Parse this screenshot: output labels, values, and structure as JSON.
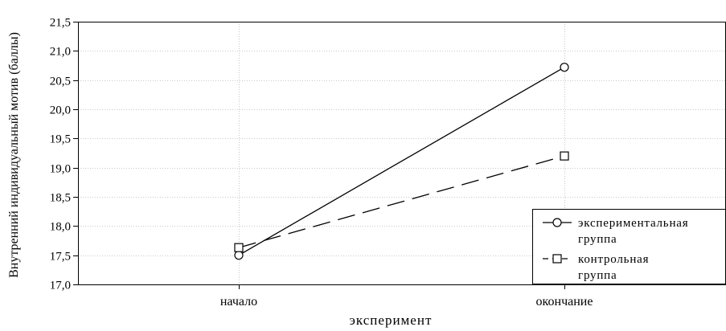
{
  "chart_data": {
    "type": "line",
    "title": "",
    "xlabel": "эксперимент",
    "ylabel": "Внутренний индивидуальный мотив (баллы)",
    "categories": [
      "начало",
      "окончание"
    ],
    "ylim": [
      17.0,
      21.5
    ],
    "yticks": [
      "17,0",
      "17,5",
      "18,0",
      "18,5",
      "19,0",
      "19,5",
      "20,0",
      "20,5",
      "21,0",
      "21,5"
    ],
    "grid": true,
    "legend_position": "bottom-right",
    "series": [
      {
        "name": "экспериментальная группа",
        "legend_lines": [
          "экспериментальная",
          "группа"
        ],
        "values": [
          17.5,
          20.72
        ],
        "marker": "circle",
        "line_style": "solid",
        "color": "#000000"
      },
      {
        "name": "контрольная группа",
        "legend_lines": [
          "контрольная",
          "группа"
        ],
        "values": [
          17.63,
          19.2
        ],
        "marker": "square",
        "line_style": "dashed",
        "color": "#000000"
      }
    ]
  }
}
